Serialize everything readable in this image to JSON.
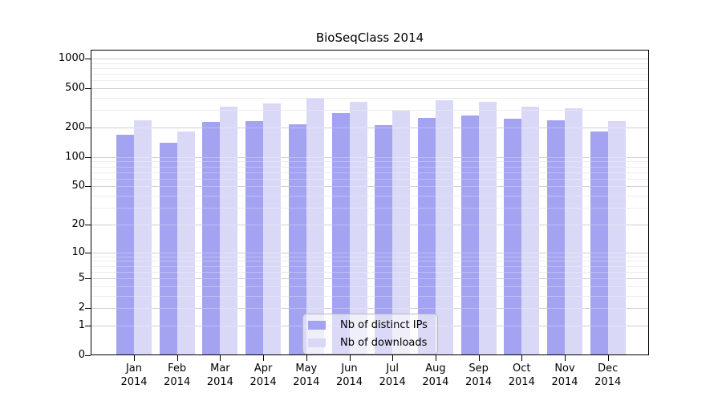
{
  "chart_data": {
    "type": "bar",
    "title": "BioSeqClass 2014",
    "categories": [
      "Jan",
      "Feb",
      "Mar",
      "Apr",
      "May",
      "Jun",
      "Jul",
      "Aug",
      "Sep",
      "Oct",
      "Nov",
      "Dec"
    ],
    "year_label": "2014",
    "series": [
      {
        "name": "Nb of distinct IPs",
        "color": "#a3a3f2",
        "values": [
          170,
          140,
          228,
          232,
          214,
          278,
          211,
          252,
          263,
          246,
          235,
          183
        ]
      },
      {
        "name": "Nb of downloads",
        "color": "#d9d9f7",
        "values": [
          237,
          182,
          326,
          352,
          398,
          365,
          297,
          381,
          366,
          326,
          315,
          231
        ]
      }
    ],
    "yscale": "log1p",
    "ylim": [
      0,
      1230
    ],
    "yticks": [
      1000,
      500,
      200,
      100,
      50,
      20,
      10,
      5,
      2,
      1,
      0
    ],
    "grid": true,
    "legend_position": "lower-center",
    "axis_color": "#000000",
    "grid_minor_color": "#e4e4e4",
    "grid_major_color": "#bbbbbb"
  }
}
